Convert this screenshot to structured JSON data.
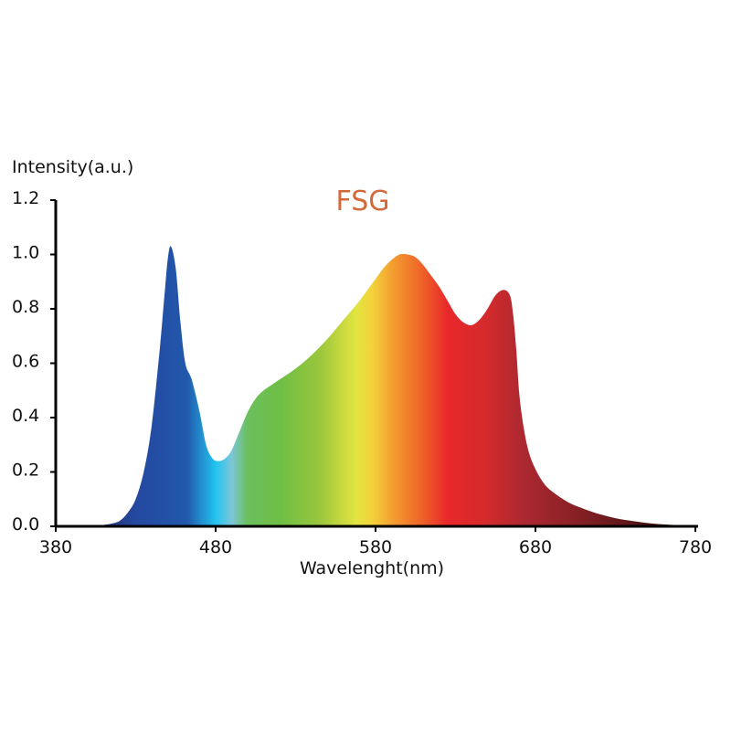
{
  "chart_data": {
    "type": "area",
    "title": "FSG",
    "title_color": "#d2693a",
    "xlabel": "Wavelenght(nm)",
    "ylabel": "Intensity(a.u.)",
    "xlim": [
      380,
      780
    ],
    "ylim": [
      0,
      1.2
    ],
    "x_ticks": [
      {
        "value": 380,
        "label": "380"
      },
      {
        "value": 480,
        "label": "480"
      },
      {
        "value": 580,
        "label": "580"
      },
      {
        "value": 680,
        "label": "680"
      },
      {
        "value": 780,
        "label": "780"
      }
    ],
    "y_ticks": [
      {
        "value": 0.0,
        "label": "0.0"
      },
      {
        "value": 0.2,
        "label": "0.2"
      },
      {
        "value": 0.4,
        "label": "0.4"
      },
      {
        "value": 0.6,
        "label": "0.6"
      },
      {
        "value": 0.8,
        "label": "0.8"
      },
      {
        "value": 1.0,
        "label": "1.0"
      },
      {
        "value": 1.2,
        "label": "1.2"
      }
    ],
    "grid": false,
    "series": [
      {
        "x": [
          405,
          410,
          415,
          420,
          425,
          430,
          435,
          440,
          445,
          448,
          450,
          452,
          455,
          458,
          461,
          465,
          470,
          474,
          478,
          482,
          486,
          490,
          495,
          500,
          505,
          510,
          515,
          520,
          530,
          540,
          550,
          560,
          570,
          580,
          585,
          590,
          595,
          600,
          605,
          610,
          615,
          620,
          625,
          630,
          635,
          640,
          645,
          650,
          655,
          660,
          664,
          666,
          668,
          670,
          673,
          676,
          680,
          685,
          690,
          700,
          710,
          720,
          730,
          740,
          750,
          760,
          770,
          780
        ],
        "y": [
          0.0,
          0.005,
          0.01,
          0.02,
          0.05,
          0.1,
          0.2,
          0.37,
          0.65,
          0.85,
          0.98,
          1.03,
          0.95,
          0.75,
          0.6,
          0.54,
          0.42,
          0.3,
          0.25,
          0.24,
          0.25,
          0.28,
          0.35,
          0.42,
          0.47,
          0.5,
          0.52,
          0.54,
          0.58,
          0.63,
          0.69,
          0.76,
          0.83,
          0.91,
          0.95,
          0.98,
          1.0,
          1.0,
          0.99,
          0.96,
          0.92,
          0.88,
          0.83,
          0.78,
          0.75,
          0.74,
          0.76,
          0.8,
          0.85,
          0.87,
          0.85,
          0.78,
          0.65,
          0.48,
          0.35,
          0.27,
          0.21,
          0.16,
          0.13,
          0.09,
          0.065,
          0.045,
          0.03,
          0.02,
          0.012,
          0.007,
          0.004,
          0.002
        ]
      }
    ],
    "gradient_stops": [
      {
        "wavelength": 400,
        "color": "#2a2a60"
      },
      {
        "wavelength": 430,
        "color": "#2448a0"
      },
      {
        "wavelength": 462,
        "color": "#2158ab"
      },
      {
        "wavelength": 480,
        "color": "#22c4f0"
      },
      {
        "wavelength": 490,
        "color": "#7cc6d8"
      },
      {
        "wavelength": 500,
        "color": "#6cbf5c"
      },
      {
        "wavelength": 520,
        "color": "#6dbf45"
      },
      {
        "wavelength": 545,
        "color": "#9ac63c"
      },
      {
        "wavelength": 568,
        "color": "#e3e540"
      },
      {
        "wavelength": 578,
        "color": "#f2d23a"
      },
      {
        "wavelength": 590,
        "color": "#f4a030"
      },
      {
        "wavelength": 610,
        "color": "#ee5f28"
      },
      {
        "wavelength": 625,
        "color": "#e8282a"
      },
      {
        "wavelength": 650,
        "color": "#d32a2c"
      },
      {
        "wavelength": 672,
        "color": "#ad2830"
      },
      {
        "wavelength": 700,
        "color": "#8e2228"
      },
      {
        "wavelength": 740,
        "color": "#5a1618"
      },
      {
        "wavelength": 780,
        "color": "#1a0707"
      }
    ]
  }
}
